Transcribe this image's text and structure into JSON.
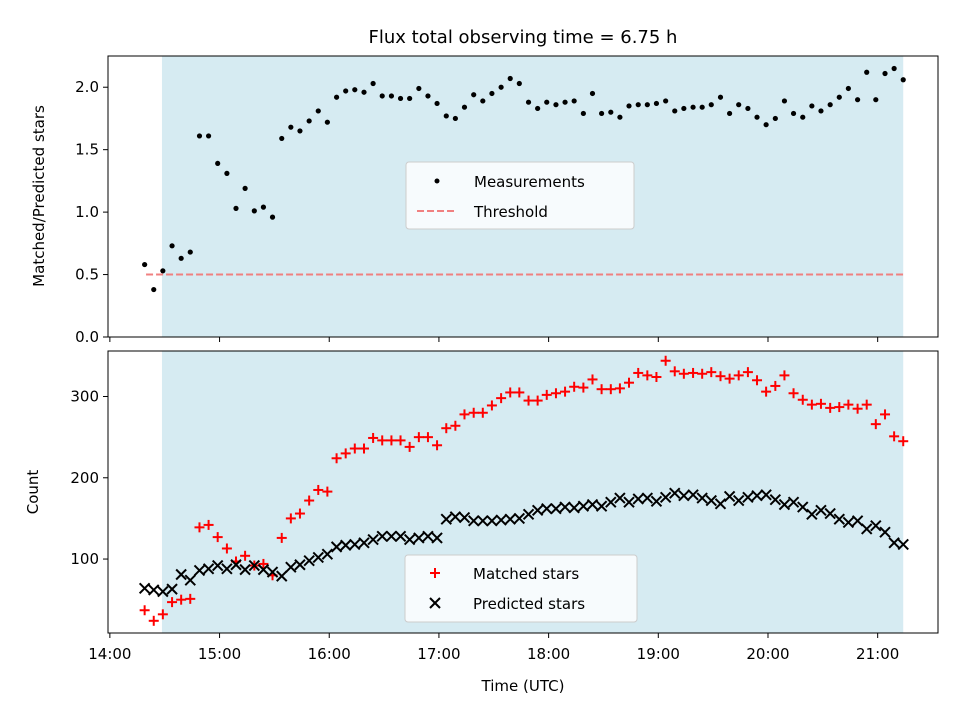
{
  "chart_data": [
    {
      "type": "scatter",
      "title": "Flux total observing time = 6.75 h",
      "xlabel": "",
      "ylabel": "Matched/Predicted stars",
      "xlim": [
        13.983,
        21.55
      ],
      "ylim": [
        0.0,
        2.25
      ],
      "yticks": [
        0.0,
        0.5,
        1.0,
        1.5,
        2.0
      ],
      "ytick_labels": [
        "0.0",
        "0.5",
        "1.0",
        "1.5",
        "2.0"
      ],
      "shaded_region": [
        14.475,
        21.233
      ],
      "legend": {
        "placement": "center",
        "entries": [
          "Measurements",
          "Threshold"
        ]
      },
      "threshold": {
        "name": "Threshold",
        "y": 0.5,
        "x_range": [
          14.33,
          21.233
        ],
        "color": "#f08080"
      },
      "series": [
        {
          "name": "Measurements",
          "x": [
            14.317,
            14.4,
            14.483,
            14.567,
            14.65,
            14.733,
            14.817,
            14.9,
            14.983,
            15.067,
            15.15,
            15.233,
            15.317,
            15.4,
            15.483,
            15.567,
            15.65,
            15.733,
            15.817,
            15.9,
            15.983,
            16.067,
            16.15,
            16.233,
            16.317,
            16.4,
            16.483,
            16.567,
            16.65,
            16.733,
            16.817,
            16.9,
            16.983,
            17.067,
            17.15,
            17.233,
            17.317,
            17.4,
            17.483,
            17.567,
            17.65,
            17.733,
            17.817,
            17.9,
            17.983,
            18.067,
            18.15,
            18.233,
            18.317,
            18.4,
            18.483,
            18.567,
            18.65,
            18.733,
            18.817,
            18.9,
            18.983,
            19.067,
            19.15,
            19.233,
            19.317,
            19.4,
            19.483,
            19.567,
            19.65,
            19.733,
            19.817,
            19.9,
            19.983,
            20.067,
            20.15,
            20.233,
            20.317,
            20.4,
            20.483,
            20.567,
            20.65,
            20.733,
            20.817,
            20.9,
            20.983,
            21.067,
            21.15,
            21.233
          ],
          "y": [
            0.58,
            0.38,
            0.53,
            0.73,
            0.63,
            0.68,
            1.61,
            1.61,
            1.39,
            1.31,
            1.03,
            1.19,
            1.01,
            1.04,
            0.96,
            1.59,
            1.68,
            1.65,
            1.73,
            1.81,
            1.72,
            1.92,
            1.97,
            1.98,
            1.96,
            2.03,
            1.93,
            1.93,
            1.91,
            1.91,
            1.99,
            1.93,
            1.87,
            1.77,
            1.75,
            1.84,
            1.94,
            1.89,
            1.95,
            2.0,
            2.07,
            2.03,
            1.88,
            1.83,
            1.88,
            1.86,
            1.88,
            1.89,
            1.79,
            1.95,
            1.79,
            1.8,
            1.76,
            1.85,
            1.86,
            1.86,
            1.87,
            1.89,
            1.81,
            1.83,
            1.84,
            1.84,
            1.86,
            1.92,
            1.79,
            1.86,
            1.83,
            1.76,
            1.7,
            1.75,
            1.89,
            1.79,
            1.76,
            1.85,
            1.81,
            1.86,
            1.92,
            1.99,
            1.9,
            2.12,
            1.9,
            2.11,
            2.15,
            2.06
          ]
        }
      ]
    },
    {
      "type": "scatter",
      "title": "",
      "xlabel": "Time (UTC)",
      "ylabel": "Count",
      "xlim": [
        13.983,
        21.55
      ],
      "ylim": [
        9,
        356
      ],
      "yticks": [
        100,
        200,
        300
      ],
      "ytick_labels": [
        "100",
        "200",
        "300"
      ],
      "xticks": [
        14,
        15,
        16,
        17,
        18,
        19,
        20,
        21
      ],
      "xtick_labels": [
        "14:00",
        "15:00",
        "16:00",
        "17:00",
        "18:00",
        "19:00",
        "20:00",
        "21:00"
      ],
      "shaded_region": [
        14.475,
        21.233
      ],
      "legend": {
        "placement": "lower center",
        "entries": [
          "Matched stars",
          "Predicted stars"
        ]
      },
      "series": [
        {
          "name": "Matched stars",
          "marker": "plus",
          "color": "#ff0000",
          "x": [
            14.317,
            14.4,
            14.483,
            14.567,
            14.65,
            14.733,
            14.817,
            14.9,
            14.983,
            15.067,
            15.15,
            15.233,
            15.317,
            15.4,
            15.483,
            15.567,
            15.65,
            15.733,
            15.817,
            15.9,
            15.983,
            16.067,
            16.15,
            16.233,
            16.317,
            16.4,
            16.483,
            16.567,
            16.65,
            16.733,
            16.817,
            16.9,
            16.983,
            17.067,
            17.15,
            17.233,
            17.317,
            17.4,
            17.483,
            17.567,
            17.65,
            17.733,
            17.817,
            17.9,
            17.983,
            18.067,
            18.15,
            18.233,
            18.317,
            18.4,
            18.483,
            18.567,
            18.65,
            18.733,
            18.817,
            18.9,
            18.983,
            19.067,
            19.15,
            19.233,
            19.317,
            19.4,
            19.483,
            19.567,
            19.65,
            19.733,
            19.817,
            19.9,
            19.983,
            20.067,
            20.15,
            20.233,
            20.317,
            20.4,
            20.483,
            20.567,
            20.65,
            20.733,
            20.817,
            20.9,
            20.983,
            21.067,
            21.15,
            21.233
          ],
          "y": [
            37,
            24,
            32,
            47,
            50,
            51,
            139,
            142,
            127,
            113,
            97,
            104,
            92,
            94,
            80,
            126,
            150,
            156,
            172,
            185,
            183,
            224,
            230,
            236,
            236,
            249,
            246,
            246,
            246,
            238,
            250,
            250,
            240,
            261,
            264,
            278,
            280,
            280,
            289,
            298,
            305,
            305,
            295,
            295,
            302,
            304,
            306,
            312,
            311,
            321,
            309,
            309,
            310,
            317,
            329,
            326,
            324,
            344,
            331,
            328,
            329,
            328,
            330,
            325,
            322,
            326,
            330,
            320,
            306,
            313,
            326,
            304,
            296,
            290,
            291,
            286,
            287,
            290,
            285,
            290,
            266,
            278,
            251,
            245
          ]
        },
        {
          "name": "Predicted stars",
          "marker": "x",
          "color": "#000000",
          "x": [
            14.317,
            14.4,
            14.483,
            14.567,
            14.65,
            14.733,
            14.817,
            14.9,
            14.983,
            15.067,
            15.15,
            15.233,
            15.317,
            15.4,
            15.483,
            15.567,
            15.65,
            15.733,
            15.817,
            15.9,
            15.983,
            16.067,
            16.15,
            16.233,
            16.317,
            16.4,
            16.483,
            16.567,
            16.65,
            16.733,
            16.817,
            16.9,
            16.983,
            17.067,
            17.15,
            17.233,
            17.317,
            17.4,
            17.483,
            17.567,
            17.65,
            17.733,
            17.817,
            17.9,
            17.983,
            18.067,
            18.15,
            18.233,
            18.317,
            18.4,
            18.483,
            18.567,
            18.65,
            18.733,
            18.817,
            18.9,
            18.983,
            19.067,
            19.15,
            19.233,
            19.317,
            19.4,
            19.483,
            19.567,
            19.65,
            19.733,
            19.817,
            19.9,
            19.983,
            20.067,
            20.15,
            20.233,
            20.317,
            20.4,
            20.483,
            20.567,
            20.65,
            20.733,
            20.817,
            20.9,
            20.983,
            21.067,
            21.15,
            21.233
          ],
          "y": [
            64,
            62,
            60,
            63,
            81,
            74,
            86,
            88,
            92,
            88,
            93,
            87,
            92,
            87,
            84,
            79,
            90,
            93,
            98,
            102,
            106,
            115,
            117,
            118,
            120,
            124,
            128,
            128,
            128,
            124,
            126,
            128,
            126,
            149,
            152,
            151,
            147,
            147,
            147,
            148,
            149,
            150,
            155,
            160,
            162,
            162,
            164,
            163,
            165,
            167,
            165,
            170,
            175,
            170,
            174,
            175,
            171,
            176,
            181,
            178,
            179,
            175,
            172,
            168,
            177,
            172,
            176,
            178,
            179,
            173,
            167,
            170,
            164,
            155,
            160,
            156,
            149,
            145,
            147,
            137,
            141,
            133,
            120,
            118
          ]
        }
      ]
    }
  ]
}
